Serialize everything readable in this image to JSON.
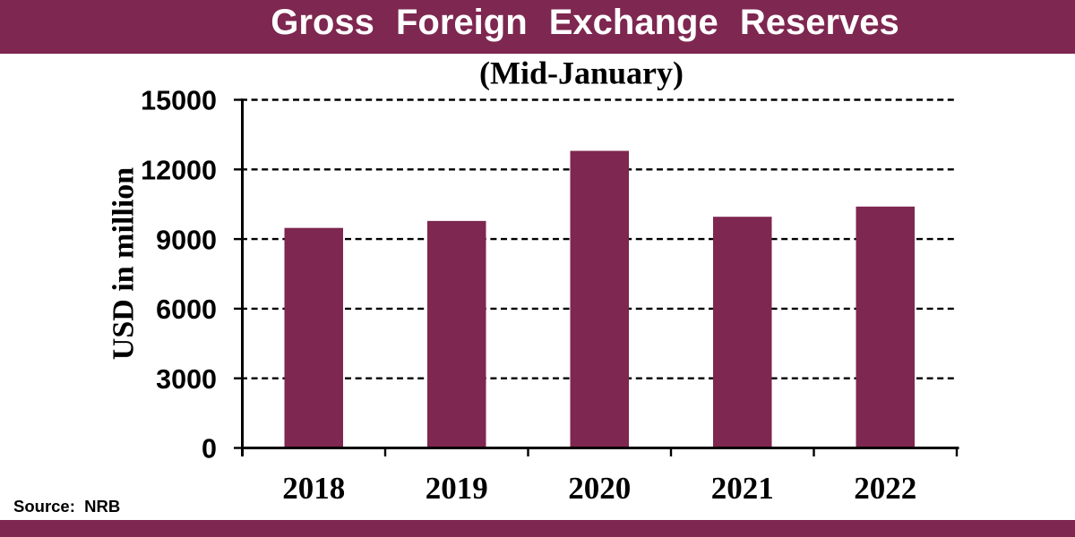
{
  "header": {
    "title": "Gross Foreign Exchange Reserves",
    "bg_color": "#7E2750",
    "text_color": "#ffffff"
  },
  "chart_data": {
    "type": "bar",
    "title": "Gross Foreign Exchange Reserves",
    "subtitle": "(Mid-January)",
    "categories": [
      "2018",
      "2019",
      "2020",
      "2021",
      "2022"
    ],
    "values": [
      9480,
      9780,
      12800,
      9960,
      10400
    ],
    "xlabel": "",
    "ylabel": "USD in million",
    "ylim": [
      0,
      15000
    ],
    "ytick_step": 3000,
    "yticks": [
      0,
      3000,
      6000,
      9000,
      12000,
      15000
    ],
    "grid": "horizontal-dashed",
    "legend": "none",
    "bar_color": "#7E2750",
    "axis_color": "#000000",
    "text_color": "#000000"
  },
  "source": {
    "label": "Source:",
    "value": "NRB"
  },
  "footer": {
    "bg_color": "#7E2750"
  }
}
